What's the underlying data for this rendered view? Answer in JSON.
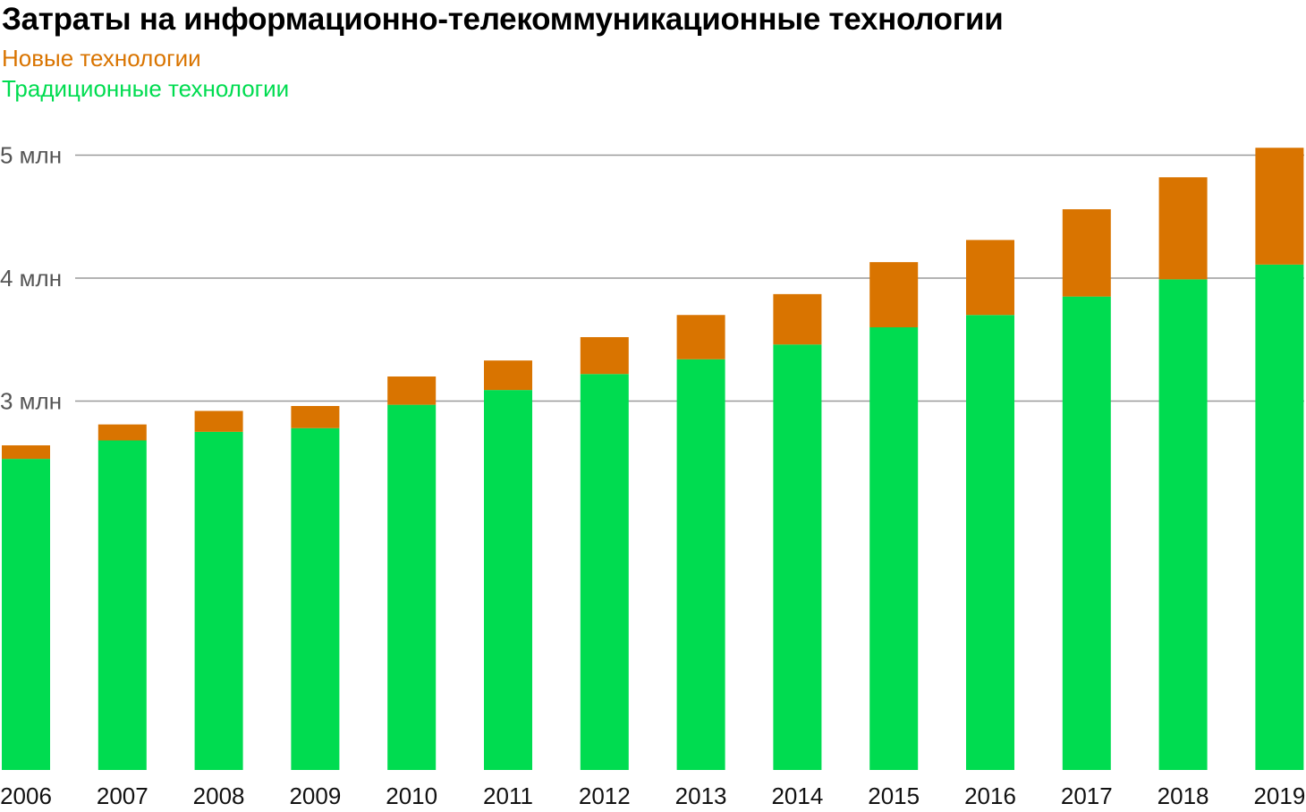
{
  "title": "Затраты на информационно-телекоммуникационные технологии",
  "colors": {
    "new": "#d97400",
    "traditional": "#00dc50",
    "grid": "#9a9a9a",
    "axis_text": "#555555"
  },
  "chart_data": {
    "type": "bar",
    "stacked": true,
    "title": "Затраты на информационно-телекоммуникационные технологии",
    "xlabel": "",
    "ylabel": "",
    "ylim": [
      0,
      5000000
    ],
    "yticks": [
      {
        "value": 3000000,
        "label": "3 млн"
      },
      {
        "value": 4000000,
        "label": "4 млн"
      },
      {
        "value": 5000000,
        "label": "5 млн"
      }
    ],
    "legend_position": "top-left",
    "grid": true,
    "categories": [
      "2006",
      "2007",
      "2008",
      "2009",
      "2010",
      "2011",
      "2012",
      "2013",
      "2014",
      "2015",
      "2016",
      "2017",
      "2018",
      "2019"
    ],
    "series": [
      {
        "name": "Традиционные технологии",
        "color": "#00dc50",
        "values": [
          2530000,
          2680000,
          2750000,
          2780000,
          2970000,
          3090000,
          3220000,
          3340000,
          3460000,
          3600000,
          3700000,
          3850000,
          3990000,
          4110000
        ]
      },
      {
        "name": "Новые технологии",
        "color": "#d97400",
        "values": [
          110000,
          130000,
          170000,
          180000,
          230000,
          240000,
          300000,
          360000,
          410000,
          530000,
          610000,
          710000,
          830000,
          950000
        ]
      }
    ]
  }
}
